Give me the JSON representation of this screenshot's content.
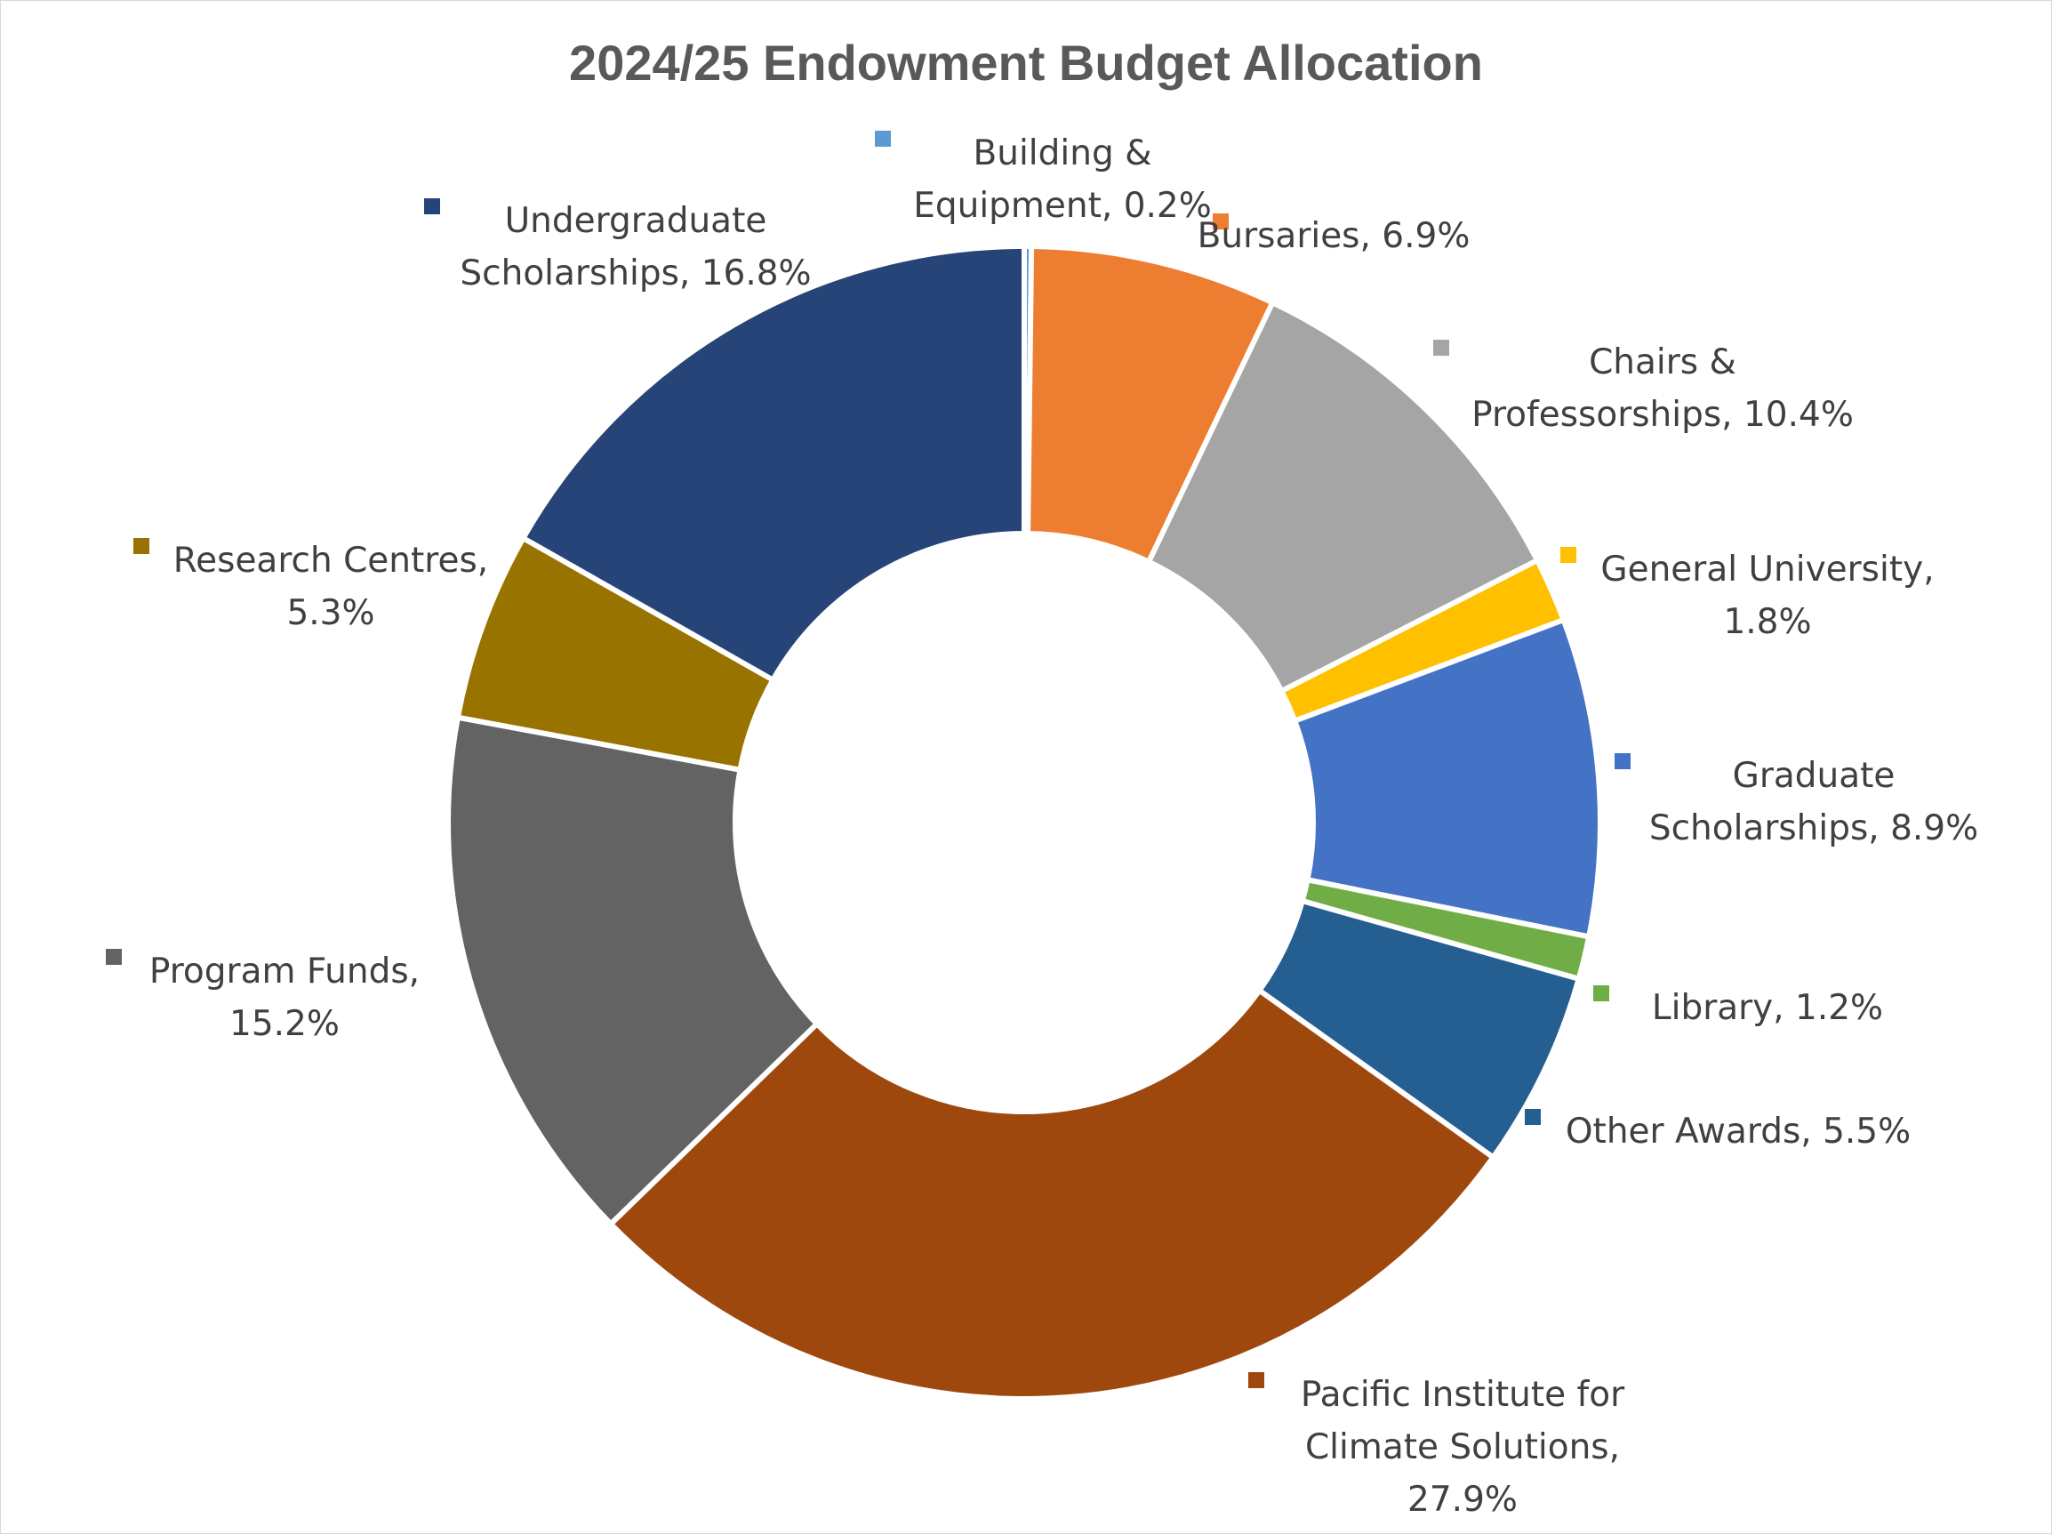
{
  "chart_data": {
    "type": "pie",
    "subtype": "donut",
    "title": "2024/25 Endowment Budget Allocation",
    "slices": [
      {
        "name": "Building & Equipment",
        "value": 0.2,
        "label": [
          "Building &",
          "Equipment, 0.2%"
        ],
        "color": "#5B9BD5"
      },
      {
        "name": "Bursaries",
        "value": 6.9,
        "label": [
          "Bursaries, 6.9%"
        ],
        "color": "#ED7D31"
      },
      {
        "name": "Chairs & Professorships",
        "value": 10.4,
        "label": [
          "Chairs &",
          "Professorships, 10.4%"
        ],
        "color": "#A5A5A5"
      },
      {
        "name": "General University",
        "value": 1.8,
        "label": [
          "General University,",
          "1.8%"
        ],
        "color": "#FFC000"
      },
      {
        "name": "Graduate Scholarships",
        "value": 8.9,
        "label": [
          "Graduate",
          "Scholarships, 8.9%"
        ],
        "color": "#4472C4"
      },
      {
        "name": "Library",
        "value": 1.2,
        "label": [
          "Library, 1.2%"
        ],
        "color": "#70AD47"
      },
      {
        "name": "Other Awards",
        "value": 5.5,
        "label": [
          "Other Awards, 5.5%"
        ],
        "color": "#255E91"
      },
      {
        "name": "Pacific Institute for Climate Solutions",
        "value": 27.9,
        "label": [
          "Pacific Institute for",
          "Climate Solutions,",
          "27.9%"
        ],
        "color": "#9E480E"
      },
      {
        "name": "Program Funds",
        "value": 15.2,
        "label": [
          "Program Funds,",
          "15.2%"
        ],
        "color": "#636363"
      },
      {
        "name": "Research Centres",
        "value": 5.3,
        "label": [
          "Research Centres,",
          "5.3%"
        ],
        "color": "#997300"
      },
      {
        "name": "Undergraduate Scholarships",
        "value": 16.8,
        "label": [
          "Undergraduate",
          "Scholarships, 16.8%"
        ],
        "color": "#264478"
      }
    ],
    "legend": "none",
    "data_labels": "outside with color markers"
  }
}
